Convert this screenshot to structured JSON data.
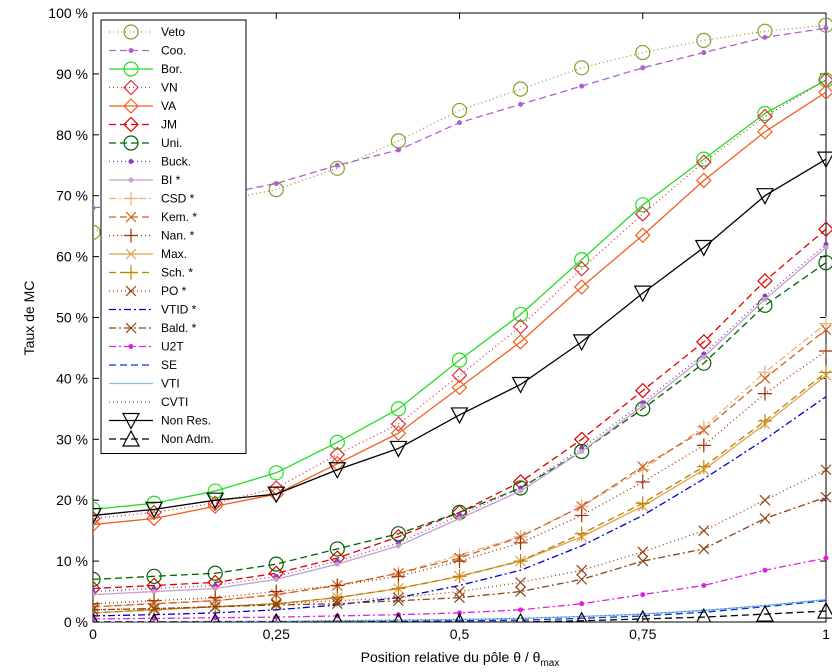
{
  "chart_data": {
    "type": "line",
    "xlabel": "Position relative du pôle θ / θ",
    "xlabel_sub": "max",
    "ylabel": "Taux de MC",
    "xlim": [
      0,
      1
    ],
    "ylim": [
      0,
      100
    ],
    "grid": false,
    "legend_position": "top-left",
    "x_ticks": [
      0,
      0.25,
      0.5,
      0.75,
      1
    ],
    "x_tick_labels": [
      "0",
      "0,25",
      "0,5",
      "0,75",
      "1"
    ],
    "y_ticks": [
      0,
      10,
      20,
      30,
      40,
      50,
      60,
      70,
      80,
      90,
      100
    ],
    "y_tick_labels": [
      "0 %",
      "10 %",
      "20 %",
      "30 %",
      "40 %",
      "50 %",
      "60 %",
      "70 %",
      "80 %",
      "90 %",
      "100 %"
    ],
    "x": [
      0,
      0.0833,
      0.1667,
      0.25,
      0.3333,
      0.4167,
      0.5,
      0.5833,
      0.6667,
      0.75,
      0.8333,
      0.9167,
      1
    ],
    "series": [
      {
        "name": "Veto",
        "color": "#8c9a30",
        "dash": "1,3",
        "marker": "circle",
        "values": [
          64,
          67.5,
          69,
          71,
          74.5,
          79,
          84,
          87.5,
          91,
          93.5,
          95.5,
          97,
          98
        ]
      },
      {
        "name": "Coo.",
        "color": "#b060d0",
        "dash": "7,4",
        "marker": "dot",
        "values": [
          68,
          69,
          70,
          72,
          75,
          77.5,
          82,
          85,
          88,
          91,
          93.5,
          96,
          97.5
        ]
      },
      {
        "name": "Bor.",
        "color": "#22dd22",
        "dash": "",
        "marker": "circle",
        "values": [
          18.5,
          19.5,
          21.5,
          24.5,
          29.5,
          35,
          43,
          50.5,
          59.5,
          68.5,
          76,
          83.5,
          89
        ]
      },
      {
        "name": "VN",
        "color": "#e03040",
        "dash": "1,3",
        "marker": "diamond",
        "values": [
          17,
          18,
          19.5,
          22,
          27.5,
          32.5,
          40.5,
          48.5,
          58,
          67,
          75.5,
          83,
          89
        ]
      },
      {
        "name": "VA",
        "color": "#f06020",
        "dash": "",
        "marker": "diamond",
        "values": [
          16,
          17,
          19,
          21,
          26,
          31,
          38.5,
          46,
          55,
          63.5,
          72.5,
          80.5,
          87
        ]
      },
      {
        "name": "JM",
        "color": "#e00000",
        "dash": "7,4",
        "marker": "diamond",
        "values": [
          5.5,
          6,
          6.5,
          8,
          10.5,
          14,
          18,
          23,
          30,
          38,
          46,
          56,
          64.5
        ]
      },
      {
        "name": "Uni.",
        "color": "#006400",
        "dash": "7,4",
        "marker": "circle",
        "values": [
          7,
          7.5,
          8,
          9.5,
          12,
          14.5,
          18,
          22,
          28,
          35,
          42.5,
          52,
          59
        ]
      },
      {
        "name": "Buck.",
        "color": "#8040c0",
        "dash": "1,3",
        "marker": "dot",
        "values": [
          5,
          5.5,
          6,
          7.5,
          10,
          13,
          17.5,
          22,
          28.5,
          36,
          44,
          53.5,
          62
        ]
      },
      {
        "name": "BI *",
        "color": "#c8a0c8",
        "dash": "",
        "marker": "dot",
        "values": [
          4.5,
          5,
          5.5,
          7,
          9.5,
          12.5,
          17,
          21.5,
          28,
          35.5,
          43.5,
          53,
          61.5
        ]
      },
      {
        "name": "CSD *",
        "color": "#e8b080",
        "dash": "7,3,2,3",
        "marker": "plus",
        "values": [
          2.5,
          3,
          3.5,
          4.5,
          6,
          8,
          11,
          14,
          19,
          25,
          32,
          41,
          49
        ]
      },
      {
        "name": "Kem. *",
        "color": "#d06020",
        "dash": "7,4",
        "marker": "x",
        "values": [
          2.5,
          3,
          3.5,
          4.5,
          6,
          8,
          10.5,
          14,
          19,
          25.5,
          31.5,
          40,
          48
        ]
      },
      {
        "name": "Nan. *",
        "color": "#a03000",
        "dash": "1,3",
        "marker": "plus",
        "values": [
          3,
          3.5,
          4,
          5,
          6,
          7.5,
          10,
          13,
          17.5,
          23,
          29,
          37.5,
          44.5
        ]
      },
      {
        "name": "Max.",
        "color": "#e0a050",
        "dash": "",
        "marker": "x",
        "values": [
          1.5,
          2,
          2.5,
          3,
          4,
          5.5,
          7.5,
          10,
          14,
          19,
          25,
          32.5,
          40.5
        ]
      },
      {
        "name": "Sch. *",
        "color": "#c08000",
        "dash": "7,4",
        "marker": "plus",
        "values": [
          1.5,
          2,
          2.5,
          3,
          4,
          5.5,
          7.5,
          10,
          14.5,
          19.5,
          25.5,
          33,
          41
        ]
      },
      {
        "name": "PO *",
        "color": "#9a4010",
        "dash": "1,3",
        "marker": "x",
        "values": [
          2,
          2.2,
          2.5,
          3,
          3.5,
          4,
          5,
          6.5,
          8.5,
          11.5,
          15,
          20,
          25
        ]
      },
      {
        "name": "VTID *",
        "color": "#0000d0",
        "dash": "7,3,2,3",
        "marker": "none",
        "values": [
          1,
          1.2,
          1.5,
          2,
          2.8,
          4,
          6,
          8.5,
          12.5,
          17.5,
          23.5,
          30,
          37
        ]
      },
      {
        "name": "Bald. *",
        "color": "#8b4513",
        "dash": "7,3,2,3",
        "marker": "x",
        "values": [
          2,
          2.2,
          2.5,
          2.8,
          3,
          3.5,
          4,
          5,
          7,
          10,
          12,
          17,
          20.5
        ]
      },
      {
        "name": "U2T",
        "color": "#e020e0",
        "dash": "7,3,2,3",
        "marker": "dot",
        "values": [
          0.5,
          0.6,
          0.7,
          0.8,
          1,
          1.2,
          1.5,
          2,
          3,
          4.5,
          6,
          8.5,
          10.5
        ]
      },
      {
        "name": "SE",
        "color": "#1030e0",
        "dash": "7,4",
        "marker": "none",
        "values": [
          0,
          0,
          0,
          0,
          0,
          0.1,
          0.2,
          0.3,
          0.6,
          1,
          1.6,
          2.5,
          3.5
        ]
      },
      {
        "name": "VTI",
        "color": "#80c0e0",
        "dash": "",
        "marker": "none",
        "values": [
          0,
          0,
          0.1,
          0.1,
          0.2,
          0.3,
          0.4,
          0.6,
          0.9,
          1.3,
          1.9,
          2.7,
          3.7
        ]
      },
      {
        "name": "CVTI",
        "color": "#4060c0",
        "dash": "1,3",
        "marker": "none",
        "values": [
          0,
          0,
          0.1,
          0.1,
          0.2,
          0.3,
          0.4,
          0.6,
          0.9,
          1.3,
          1.9,
          2.7,
          3.6
        ]
      },
      {
        "name": "Non Res.",
        "color": "#000000",
        "dash": "",
        "marker": "triangle-down",
        "values": [
          17.5,
          18.5,
          20,
          21,
          25,
          28.5,
          34,
          39,
          46,
          54,
          61.5,
          70,
          76
        ]
      },
      {
        "name": "Non Adm.",
        "color": "#000000",
        "dash": "7,4",
        "marker": "triangle-up",
        "values": [
          0,
          0,
          0,
          0,
          0,
          0,
          0,
          0,
          0.2,
          0.5,
          0.8,
          1.3,
          1.8
        ]
      }
    ]
  }
}
